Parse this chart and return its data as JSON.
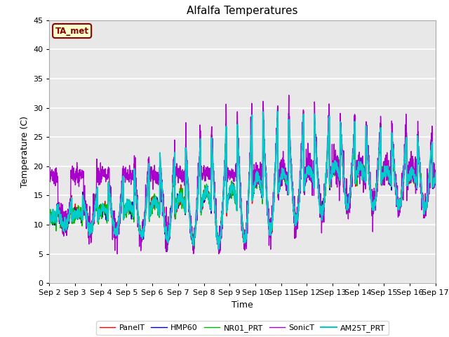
{
  "title": "Alfalfa Temperatures",
  "xlabel": "Time",
  "ylabel": "Temperature (C)",
  "ylim": [
    0,
    45
  ],
  "annotation": "TA_met",
  "annotation_color": "#8B0000",
  "annotation_bg": "#FFFFCC",
  "plot_bg": "#E8E8E8",
  "legend_labels": [
    "PanelT",
    "HMP60",
    "NR01_PRT",
    "SonicT",
    "AM25T_PRT"
  ],
  "line_colors": [
    "#FF0000",
    "#0000CC",
    "#00BB00",
    "#AA00CC",
    "#00CCCC"
  ],
  "line_widths": [
    1.0,
    1.0,
    1.0,
    1.0,
    1.5
  ],
  "xtick_labels": [
    "Sep 2",
    "Sep 3",
    "Sep 4",
    "Sep 5",
    "Sep 6",
    "Sep 7",
    "Sep 8",
    "Sep 9",
    "Sep 10",
    "Sep 11",
    "Sep 12",
    "Sep 13",
    "Sep 14",
    "Sep 15",
    "Sep 16",
    "Sep 17"
  ],
  "n_days": 15,
  "points_per_day": 144
}
